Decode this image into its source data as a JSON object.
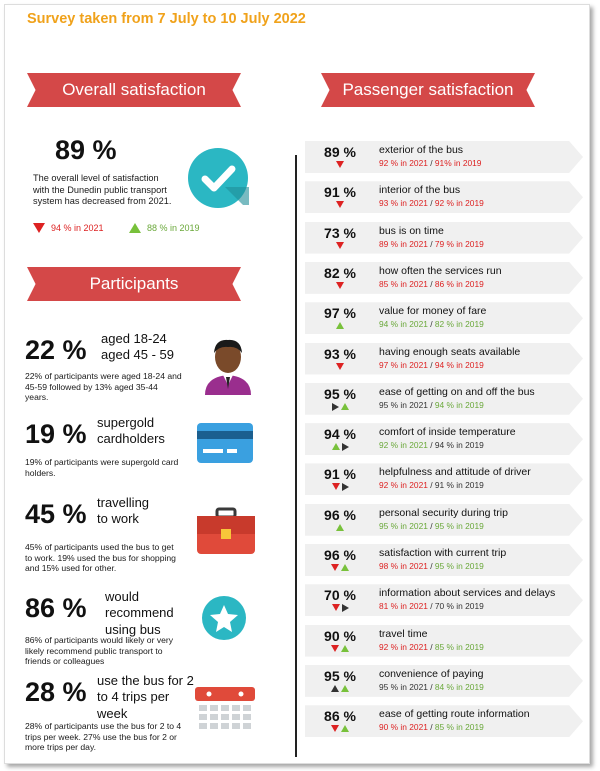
{
  "title": "Survey taken from 7 July to 10 July 2022",
  "overall": {
    "heading": "Overall satisfaction",
    "value": "89 %",
    "text": "The overall level of satisfaction with the Dunedin public transport system has decreased from 2021.",
    "y2021": "94 % in 2021",
    "y2019": "88 % in 2019"
  },
  "participants": {
    "heading": "Participants",
    "items": [
      {
        "value": "22 %",
        "label": "aged 18-24\naged 45 - 59",
        "text": "22% of participants were aged 18-24 and 45-59 followed by 13% aged 35-44 years.",
        "icon": "person-icon"
      },
      {
        "value": "19 %",
        "label": "supergold\ncardholders",
        "text": "19% of participants were supergold card holders.",
        "icon": "card-icon"
      },
      {
        "value": "45 %",
        "label": "travelling\nto work",
        "text": "45% of participants used the bus to get to work.  19% used the bus for shopping and 15% used for other.",
        "icon": "briefcase-icon"
      },
      {
        "value": "86 %",
        "label": "would\nrecommend\nusing bus",
        "text": "86% of participants would likely or very likely recommend public transport to friends or colleagues",
        "icon": "star-icon"
      },
      {
        "value": "28 %",
        "label": "use the bus for 2\nto 4 trips per\nweek",
        "text": "28% of participants use the bus for 2 to 4 trips per week.  27% use the bus for 2 or more trips per day.",
        "icon": "calendar-icon"
      }
    ]
  },
  "passenger": {
    "heading": "Passenger satisfaction",
    "rows": [
      {
        "value": "89 %",
        "name": "exterior of the bus",
        "a": "92 % in 2021",
        "b": "91% in 2019",
        "a_color": "red",
        "b_color": "red",
        "ind": [
          "down"
        ]
      },
      {
        "value": "91 %",
        "name": "interior of the bus",
        "a": "93 % in 2021",
        "b": "92 % in 2019",
        "a_color": "red",
        "b_color": "red",
        "ind": [
          "down"
        ]
      },
      {
        "value": "73 %",
        "name": "bus is on time",
        "a": "89 % in 2021",
        "b": "79 % in 2019",
        "a_color": "red",
        "b_color": "red",
        "ind": [
          "down"
        ]
      },
      {
        "value": "82 %",
        "name": "how often the services run",
        "a": "85 % in 2021",
        "b": "86 % in 2019",
        "a_color": "red",
        "b_color": "red",
        "ind": [
          "down"
        ]
      },
      {
        "value": "97 %",
        "name": "value for money of fare",
        "a": "94 % in 2021",
        "b": "82 % in 2019",
        "a_color": "green",
        "b_color": "green",
        "ind": [
          "up"
        ]
      },
      {
        "value": "93 %",
        "name": "having enough seats available",
        "a": "97 % in 2021",
        "b": "94 % in 2019",
        "a_color": "red",
        "b_color": "red",
        "ind": [
          "down"
        ]
      },
      {
        "value": "95 %",
        "name": "ease of getting on and off the bus",
        "a": "95 % in 2021",
        "b": "94 % in 2019",
        "a_color": "dark",
        "b_color": "green",
        "ind": [
          "right",
          "up"
        ]
      },
      {
        "value": "94 %",
        "name": "comfort of inside temperature",
        "a": "92 % in 2021",
        "b": "94 % in 2019",
        "a_color": "green",
        "b_color": "dark",
        "ind": [
          "up",
          "right"
        ]
      },
      {
        "value": "91 %",
        "name": "helpfulness and attitude of driver",
        "a": "92 % in 2021",
        "b": "91 % in 2019",
        "a_color": "red",
        "b_color": "dark",
        "ind": [
          "down",
          "right"
        ]
      },
      {
        "value": "96 %",
        "name": "personal security during trip",
        "a": "95 % in 2021",
        "b": "95 % in 2019",
        "a_color": "green",
        "b_color": "green",
        "ind": [
          "up"
        ]
      },
      {
        "value": "96 %",
        "name": "satisfaction with current trip",
        "a": "98 % in 2021",
        "b": "95 % in 2019",
        "a_color": "red",
        "b_color": "green",
        "ind": [
          "down",
          "up"
        ]
      },
      {
        "value": "70 %",
        "name": "information about services and delays",
        "a": "81 % in 2021",
        "b": "70 % in 2019",
        "a_color": "red",
        "b_color": "dark",
        "ind": [
          "down",
          "right"
        ]
      },
      {
        "value": "90 %",
        "name": "travel time",
        "a": "92  % in 2021",
        "b": "85 % in 2019",
        "a_color": "red",
        "b_color": "green",
        "ind": [
          "down",
          "up"
        ]
      },
      {
        "value": "95 %",
        "name": "convenience of paying",
        "a": "95 % in 2021",
        "b": "84 % in 2019",
        "a_color": "dark",
        "b_color": "green",
        "ind": [
          "updark",
          "up"
        ]
      },
      {
        "value": "86 %",
        "name": "ease of getting route information",
        "a": "90 % in 2021",
        "b": "85 % in 2019",
        "a_color": "red",
        "b_color": "green",
        "ind": [
          "down",
          "up"
        ]
      }
    ]
  },
  "colors": {
    "accent": "#d44848",
    "title": "#f0a21b",
    "red": "#dd2222",
    "green": "#6aa83a",
    "teal": "#2bb7c3"
  }
}
